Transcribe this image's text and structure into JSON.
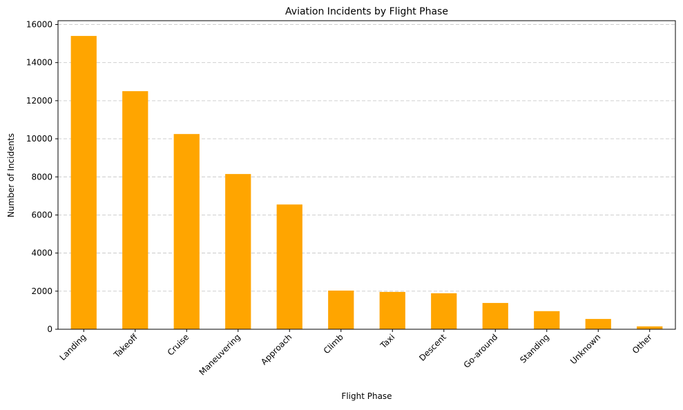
{
  "chart_data": {
    "type": "bar",
    "title": "Aviation Incidents by Flight Phase",
    "xlabel": "Flight Phase",
    "ylabel": "Number of Incidents",
    "categories": [
      "Landing",
      "Takeoff",
      "Cruise",
      "Maneuvering",
      "Approach",
      "Climb",
      "Taxi",
      "Descent",
      "Go-around",
      "Standing",
      "Unknown",
      "Other"
    ],
    "values": [
      15400,
      12500,
      10250,
      8150,
      6550,
      2030,
      1960,
      1890,
      1380,
      950,
      540,
      150
    ],
    "ylim": [
      0,
      16200
    ],
    "yticks": [
      0,
      2000,
      4000,
      6000,
      8000,
      10000,
      12000,
      14000,
      16000
    ],
    "ytick_labels": [
      "0",
      "2000",
      "4000",
      "6000",
      "8000",
      "10000",
      "12000",
      "14000",
      "16000"
    ],
    "grid": "y-axis dashed",
    "legend": "none",
    "bar_color": "#ffa500"
  }
}
